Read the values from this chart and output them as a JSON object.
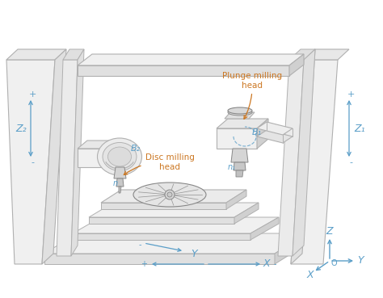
{
  "bg_color": "#ffffff",
  "blue": "#5a9ec8",
  "orange": "#cc7722",
  "edge_light": "#b0b0b0",
  "edge_dark": "#888888",
  "face_top": "#f0f0f0",
  "face_front": "#e0e0e0",
  "face_side": "#d0d0d0",
  "face_inner": "#c8c8c8",
  "labels": {
    "plunge_milling": "Plunge milling\nhead",
    "disc_milling": "Disc milling\nhead",
    "B1": "B₁",
    "B2": "B₂",
    "n1": "n₁",
    "n2": "n",
    "Z1": "Z₁",
    "Z2": "Z₂",
    "X": "X",
    "Y": "Y",
    "Z": "Z",
    "O": "O"
  }
}
